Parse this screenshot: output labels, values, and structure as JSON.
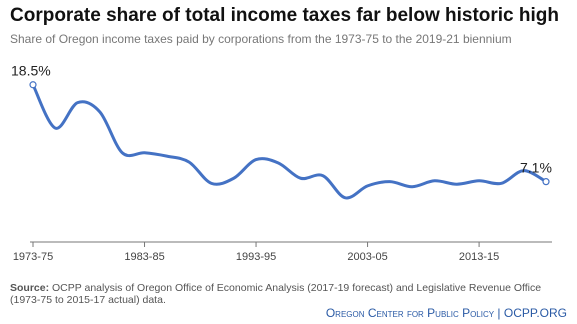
{
  "chart_data": {
    "type": "line",
    "title": "Corporate share of total income taxes far below historic high",
    "subtitle": "Share of Oregon income taxes paid by corporations from the 1973-75 to the 2019-21 biennium",
    "categories": [
      "1973-75",
      null,
      null,
      null,
      null,
      "1983-85",
      null,
      null,
      null,
      null,
      "1993-95",
      null,
      null,
      null,
      null,
      "2003-05",
      null,
      null,
      null,
      null,
      "2013-15",
      null,
      null,
      null
    ],
    "values": [
      18.5,
      13.4,
      16.4,
      15.3,
      10.5,
      10.5,
      10.1,
      9.4,
      6.9,
      7.5,
      9.7,
      9.3,
      7.5,
      7.8,
      5.2,
      6.6,
      7.1,
      6.5,
      7.2,
      6.8,
      7.2,
      6.9,
      8.4,
      7.1
    ],
    "value_labels": [
      "18.5%",
      null,
      null,
      null,
      null,
      null,
      null,
      null,
      null,
      null,
      null,
      null,
      null,
      null,
      null,
      null,
      null,
      null,
      null,
      null,
      null,
      null,
      null,
      "7.1%"
    ],
    "color": "#4472c4",
    "ylim": [
      0,
      20
    ],
    "source_label": "Source:",
    "source": "OCPP analysis of Oregon Office of Economic Analysis (2017-19 forecast) and Legislative Revenue Office (1973-75 to 2015-17 actual) data.",
    "footer": "Oregon Center for Public Policy | OCPP.ORG"
  }
}
